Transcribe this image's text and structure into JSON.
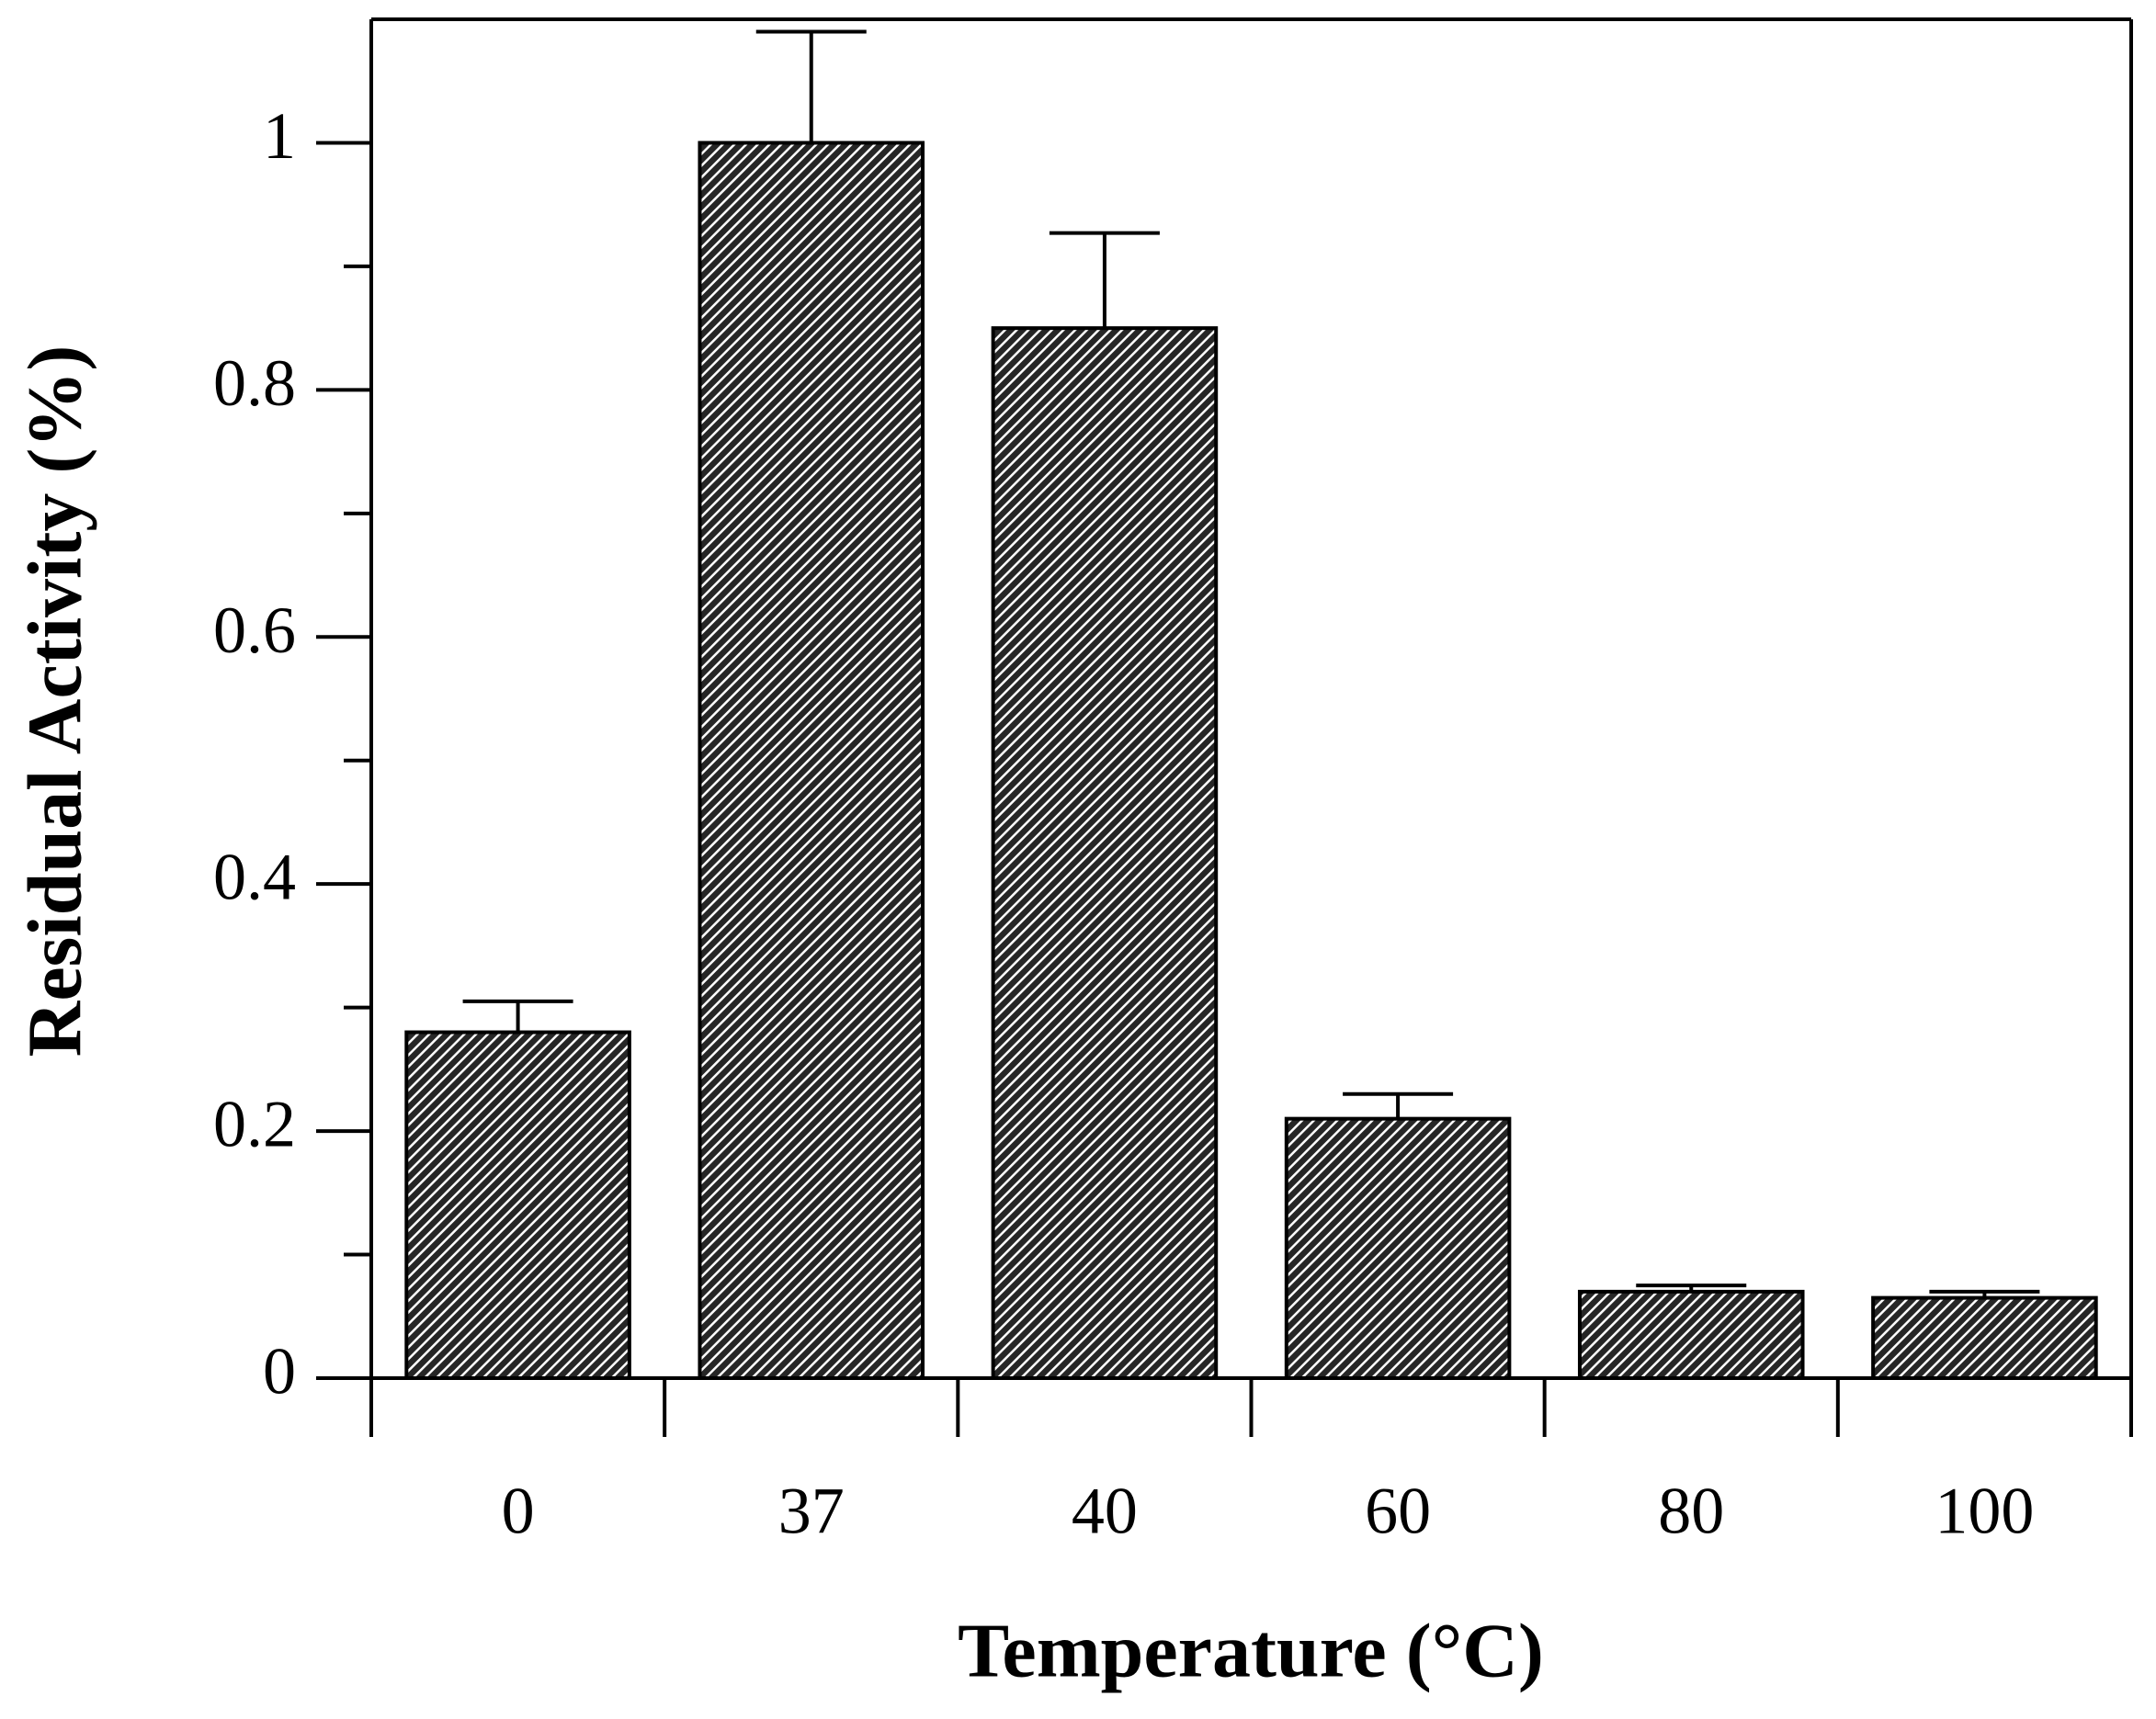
{
  "chart_data": {
    "type": "bar",
    "x_label": "Temperature (°C)",
    "y_label": "Residual Activity (%)",
    "categories": [
      "0",
      "37",
      "40",
      "60",
      "80",
      "100"
    ],
    "series": [
      {
        "color": "#000000",
        "values": [
          0.28,
          1.0,
          0.85,
          0.21,
          0.07,
          0.065
        ],
        "errors": [
          0.025,
          0.09,
          0.077,
          0.02,
          0.005,
          0.005
        ]
      }
    ],
    "ylim": [
      0,
      1.1
    ],
    "yticks": [
      0,
      0.2,
      0.4,
      0.6,
      0.8,
      1
    ],
    "minor_yticks": [
      0.1,
      0.3,
      0.5,
      0.7,
      0.9
    ],
    "grid": false
  }
}
